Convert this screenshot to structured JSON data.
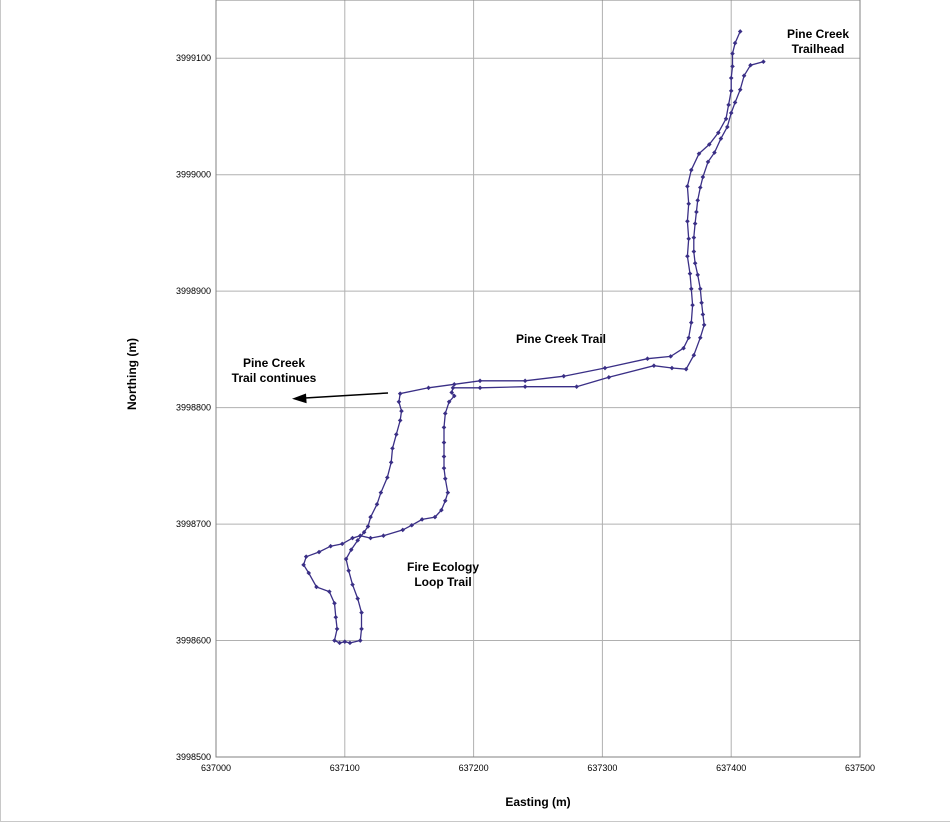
{
  "chart_data": {
    "type": "scatter",
    "title": "",
    "xlabel": "Easting (m)",
    "ylabel": "Northing (m)",
    "xlim": [
      637000,
      637500
    ],
    "ylim": [
      3998500,
      3999150
    ],
    "x_ticks": [
      637000,
      637100,
      637200,
      637300,
      637400,
      637500
    ],
    "y_ticks": [
      3998500,
      3998600,
      3998700,
      3998800,
      3998900,
      3999000,
      3999100
    ],
    "grid": true,
    "legend": "none",
    "line_color": "#3a2f86",
    "marker_color": "#3a2f86",
    "series": [
      {
        "points": [
          [
            637425,
            3999097
          ],
          [
            637415,
            3999094
          ],
          [
            637410,
            3999085
          ],
          [
            637407,
            3999073
          ],
          [
            637403,
            3999062
          ],
          [
            637400,
            3999053
          ],
          [
            637397,
            3999041
          ],
          [
            637392,
            3999031
          ],
          [
            637387,
            3999019
          ],
          [
            637382,
            3999011
          ],
          [
            637378,
            3998998
          ],
          [
            637376,
            3998989
          ],
          [
            637374,
            3998978
          ],
          [
            637373,
            3998968
          ],
          [
            637372,
            3998958
          ],
          [
            637371,
            3998946
          ],
          [
            637371,
            3998934
          ],
          [
            637372,
            3998924
          ],
          [
            637374,
            3998914
          ],
          [
            637376,
            3998902
          ],
          [
            637377,
            3998890
          ],
          [
            637378,
            3998880
          ],
          [
            637379,
            3998871
          ],
          [
            637376,
            3998860
          ],
          [
            637371,
            3998845
          ],
          [
            637365,
            3998833
          ],
          [
            637354,
            3998834
          ],
          [
            637340,
            3998836
          ],
          [
            637305,
            3998826
          ],
          [
            637280,
            3998818
          ],
          [
            637240,
            3998818
          ],
          [
            637205,
            3998817
          ],
          [
            637184,
            3998817
          ],
          [
            637183,
            3998813
          ],
          [
            637185,
            3998810
          ],
          [
            637181,
            3998805
          ],
          [
            637178,
            3998795
          ],
          [
            637177,
            3998783
          ],
          [
            637177,
            3998770
          ],
          [
            637177,
            3998758
          ],
          [
            637177,
            3998748
          ],
          [
            637178,
            3998739
          ],
          [
            637180,
            3998727
          ],
          [
            637178,
            3998720
          ],
          [
            637175,
            3998712
          ],
          [
            637170,
            3998706
          ],
          [
            637160,
            3998704
          ],
          [
            637152,
            3998699
          ],
          [
            637145,
            3998695
          ],
          [
            637130,
            3998690
          ],
          [
            637120,
            3998688
          ],
          [
            637112,
            3998690
          ],
          [
            637106,
            3998688
          ],
          [
            637098,
            3998683
          ],
          [
            637089,
            3998681
          ],
          [
            637080,
            3998676
          ],
          [
            637070,
            3998672
          ],
          [
            637068,
            3998665
          ],
          [
            637072,
            3998658
          ],
          [
            637078,
            3998646
          ],
          [
            637088,
            3998642
          ],
          [
            637092,
            3998632
          ],
          [
            637093,
            3998620
          ],
          [
            637094,
            3998610
          ],
          [
            637092,
            3998600
          ],
          [
            637096,
            3998598
          ],
          [
            637100,
            3998599
          ],
          [
            637104,
            3998598
          ],
          [
            637112,
            3998600
          ],
          [
            637113,
            3998610
          ],
          [
            637113,
            3998624
          ],
          [
            637110,
            3998636
          ],
          [
            637106,
            3998648
          ],
          [
            637103,
            3998660
          ],
          [
            637101,
            3998670
          ],
          [
            637105,
            3998678
          ],
          [
            637110,
            3998686
          ],
          [
            637115,
            3998693
          ],
          [
            637118,
            3998698
          ],
          [
            637120,
            3998706
          ],
          [
            637125,
            3998717
          ],
          [
            637128,
            3998727
          ],
          [
            637133,
            3998740
          ],
          [
            637136,
            3998753
          ],
          [
            637137,
            3998765
          ],
          [
            637140,
            3998777
          ],
          [
            637143,
            3998789
          ],
          [
            637144,
            3998797
          ],
          [
            637142,
            3998805
          ],
          [
            637143,
            3998812
          ],
          [
            637165,
            3998817
          ],
          [
            637185,
            3998820
          ],
          [
            637205,
            3998823
          ],
          [
            637240,
            3998823
          ],
          [
            637270,
            3998827
          ],
          [
            637302,
            3998834
          ],
          [
            637335,
            3998842
          ],
          [
            637353,
            3998844
          ],
          [
            637363,
            3998851
          ],
          [
            637367,
            3998860
          ],
          [
            637369,
            3998873
          ],
          [
            637370,
            3998888
          ],
          [
            637369,
            3998902
          ],
          [
            637368,
            3998915
          ],
          [
            637366,
            3998930
          ],
          [
            637367,
            3998945
          ],
          [
            637366,
            3998960
          ],
          [
            637367,
            3998975
          ],
          [
            637366,
            3998990
          ],
          [
            637369,
            3999004
          ],
          [
            637375,
            3999018
          ],
          [
            637383,
            3999026
          ],
          [
            637390,
            3999036
          ],
          [
            637396,
            3999048
          ],
          [
            637398,
            3999060
          ],
          [
            637400,
            3999072
          ],
          [
            637400,
            3999083
          ],
          [
            637401,
            3999093
          ],
          [
            637401,
            3999104
          ],
          [
            637403,
            3999113
          ],
          [
            637407,
            3999123
          ]
        ]
      }
    ],
    "annotations": [
      {
        "text": "Pine Creek Trailhead",
        "lines": [
          "Pine Creek",
          "Trailhead"
        ]
      },
      {
        "text": "Pine Creek Trail",
        "lines": [
          "Pine Creek Trail"
        ]
      },
      {
        "text": "Pine Creek Trail continues",
        "lines": [
          "Pine Creek",
          "Trail continues"
        ]
      },
      {
        "text": "Fire Ecology Loop Trail",
        "lines": [
          "Fire Ecology",
          "Loop Trail"
        ]
      }
    ]
  }
}
